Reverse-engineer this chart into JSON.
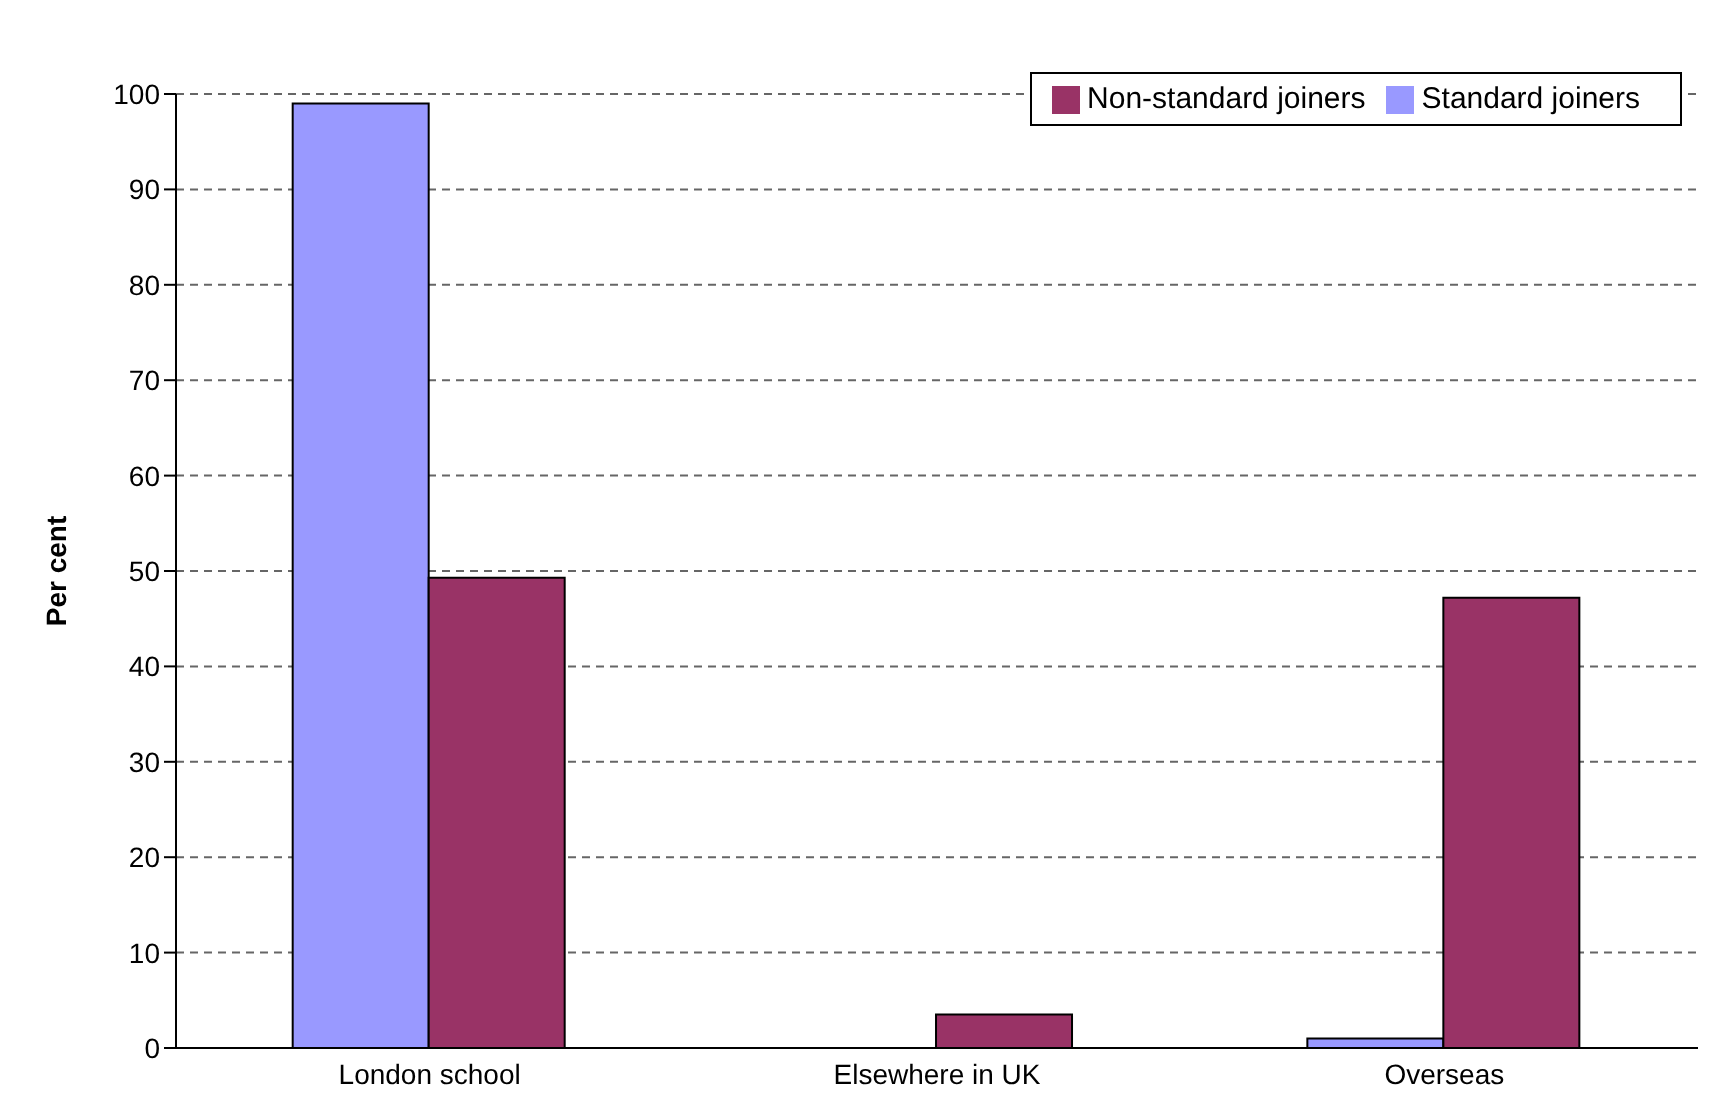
{
  "chart_data": {
    "type": "bar",
    "ylabel": "Per cent",
    "categories": [
      "London school",
      "Elsewhere in UK",
      "Overseas"
    ],
    "series": [
      {
        "name": "Standard joiners",
        "color": "#9999ff",
        "values": [
          99,
          0,
          1
        ]
      },
      {
        "name": "Non-standard joiners",
        "color": "#993366",
        "values": [
          49.3,
          3.5,
          47.2
        ]
      }
    ],
    "ylim": [
      0,
      100
    ],
    "yticks": [
      0,
      10,
      20,
      30,
      40,
      50,
      60,
      70,
      80,
      90,
      100
    ],
    "grid": "y",
    "legend": "top right"
  }
}
